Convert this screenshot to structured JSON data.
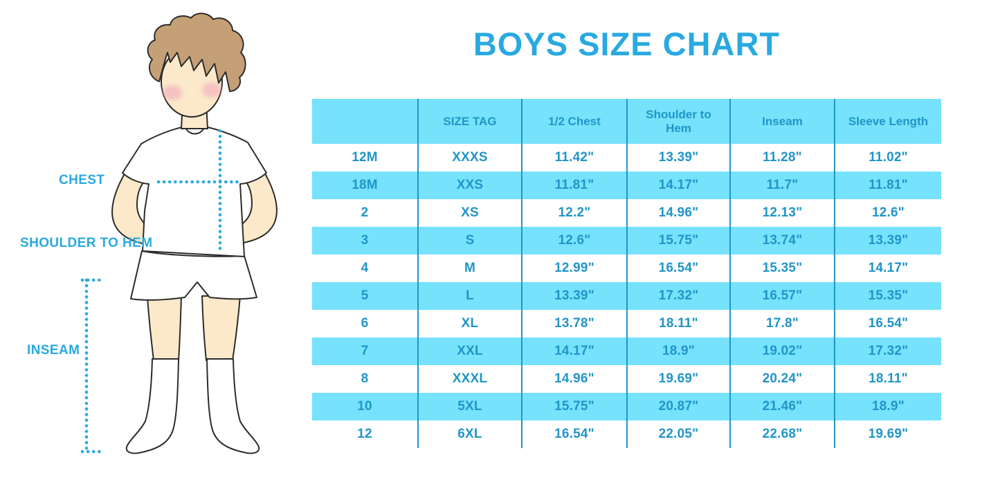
{
  "figure": {
    "labels": {
      "chest": "CHEST",
      "shoulder_to_hem": "SHOULDER TO HEM",
      "inseam": "INSEAM"
    }
  },
  "colors": {
    "title_blue": "#29A9E1",
    "table_text_blue": "#2095C8",
    "band_cyan": "#76E2FC",
    "grid_line_blue": "#2095C8",
    "hair_brown": "#C5A076",
    "skin_tone": "#FBE9C9",
    "blush_pink": "#F2A8BC",
    "outline_dark": "#2B2B2B"
  },
  "chart_data": {
    "type": "table",
    "title": "BOYS SIZE CHART",
    "columns": [
      "",
      "SIZE TAG",
      "1/2 Chest",
      "Shoulder to Hem",
      "Inseam",
      "Sleeve Length"
    ],
    "rows": [
      [
        "12M",
        "XXXS",
        "11.42\"",
        "13.39\"",
        "11.28\"",
        "11.02\""
      ],
      [
        "18M",
        "XXS",
        "11.81\"",
        "14.17\"",
        "11.7\"",
        "11.81\""
      ],
      [
        "2",
        "XS",
        "12.2\"",
        "14.96\"",
        "12.13\"",
        "12.6\""
      ],
      [
        "3",
        "S",
        "12.6\"",
        "15.75\"",
        "13.74\"",
        "13.39\""
      ],
      [
        "4",
        "M",
        "12.99\"",
        "16.54\"",
        "15.35\"",
        "14.17\""
      ],
      [
        "5",
        "L",
        "13.39\"",
        "17.32\"",
        "16.57\"",
        "15.35\""
      ],
      [
        "6",
        "XL",
        "13.78\"",
        "18.11\"",
        "17.8\"",
        "16.54\""
      ],
      [
        "7",
        "XXL",
        "14.17\"",
        "18.9\"",
        "19.02\"",
        "17.32\""
      ],
      [
        "8",
        "XXXL",
        "14.96\"",
        "19.69\"",
        "20.24\"",
        "18.11\""
      ],
      [
        "10",
        "5XL",
        "15.75\"",
        "20.87\"",
        "21.46\"",
        "18.9\""
      ],
      [
        "12",
        "6XL",
        "16.54\"",
        "22.05\"",
        "22.68\"",
        "19.69\""
      ]
    ],
    "units": "inches",
    "layout_hints": "header row and alternating data rows filled cyan; blue column separator lines; first column unlabeled size/age"
  }
}
